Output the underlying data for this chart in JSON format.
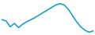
{
  "x": [
    0,
    1,
    2,
    3,
    4,
    5,
    6,
    7,
    8,
    9,
    10,
    11,
    12,
    13,
    14,
    15,
    16,
    17,
    18,
    19,
    20,
    21,
    22
  ],
  "y": [
    55,
    52,
    38,
    46,
    36,
    44,
    50,
    55,
    60,
    66,
    72,
    78,
    84,
    90,
    93,
    90,
    80,
    65,
    50,
    38,
    30,
    25,
    28
  ],
  "line_color": "#1a9ed4",
  "line_width": 1.2,
  "background_color": "#ffffff"
}
